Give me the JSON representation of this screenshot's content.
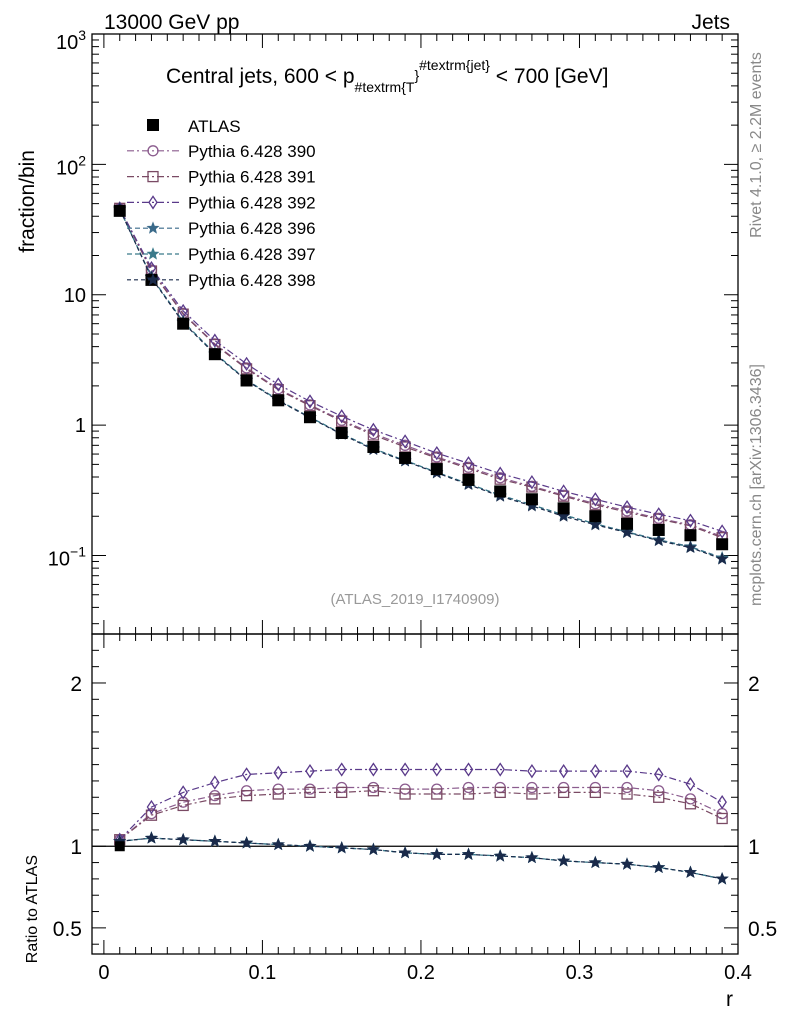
{
  "header": {
    "left": "13000 GeV pp",
    "right": "Jets"
  },
  "side_labels": {
    "rivet": "Rivet 4.1.0, ≥ 2.2M events",
    "mcplots": "mcplots.cern.ch [arXiv:1306.3436]"
  },
  "chart_data": {
    "type": "line",
    "title": "Central jets, 600 < p",
    "title_sub": "#textrm{T",
    "title_brace": "}",
    "title_sup": "#textrm{jet}",
    "title_tail": " < 700 [GeV]",
    "watermark": "(ATLAS_2019_I1740909)",
    "xlabel": "r",
    "ylabel": "fraction/bin",
    "ratio_ylabel": "Ratio to ATLAS",
    "xlim": [
      -0.0075,
      0.4
    ],
    "ylim": [
      0.025,
      1000
    ],
    "ylog": true,
    "ratio_ylim": [
      0.34,
      2.3
    ],
    "x_ticks": [
      "0",
      "0.1",
      "0.2",
      "0.3",
      "0.4"
    ],
    "main_y_ticks": [
      "10",
      "1"
    ],
    "main_y_ticks_exp": [
      {
        "base": "10",
        "exp": "3"
      },
      {
        "base": "10",
        "exp": "2"
      },
      {
        "base": "10",
        "exp": "−1"
      }
    ],
    "ratio_y_ticks": [
      "2",
      "1",
      "0.5"
    ],
    "x": [
      0.01,
      0.03,
      0.05,
      0.07,
      0.09,
      0.11,
      0.13,
      0.15,
      0.17,
      0.19,
      0.21,
      0.23,
      0.25,
      0.27,
      0.29,
      0.31,
      0.33,
      0.35,
      0.37,
      0.39
    ],
    "data": {
      "name": "ATLAS",
      "values": [
        44,
        13,
        6,
        3.5,
        2.2,
        1.55,
        1.15,
        0.87,
        0.68,
        0.56,
        0.46,
        0.38,
        0.31,
        0.27,
        0.23,
        0.2,
        0.175,
        0.157,
        0.143,
        0.122
      ]
    },
    "series": [
      {
        "name": "Pythia 6.428 390",
        "color": "#8b5c8e",
        "marker": "circle",
        "dash": "7,3,2,3",
        "values": [
          46,
          15.5,
          7.2,
          4.2,
          2.75,
          1.9,
          1.43,
          1.09,
          0.86,
          0.7,
          0.57,
          0.475,
          0.395,
          0.34,
          0.29,
          0.25,
          0.22,
          0.193,
          0.172,
          0.14
        ]
      },
      {
        "name": "Pythia 6.428 391",
        "color": "#7a4a64",
        "marker": "square",
        "dash": "7,3,2,3",
        "values": [
          46,
          15.2,
          7.1,
          4.15,
          2.7,
          1.87,
          1.41,
          1.07,
          0.84,
          0.68,
          0.56,
          0.465,
          0.385,
          0.335,
          0.285,
          0.245,
          0.215,
          0.19,
          0.169,
          0.137
        ]
      },
      {
        "name": "Pythia 6.428 392",
        "color": "#5a3a8a",
        "marker": "diamond",
        "dash": "7,3,2,3",
        "values": [
          46,
          16,
          7.5,
          4.45,
          2.95,
          2.05,
          1.52,
          1.17,
          0.92,
          0.75,
          0.61,
          0.51,
          0.425,
          0.365,
          0.31,
          0.27,
          0.235,
          0.207,
          0.185,
          0.153
        ]
      },
      {
        "name": "Pythia 6.428 396",
        "color": "#3a6a8a",
        "marker": "star",
        "dash": "5,3",
        "values": [
          45.5,
          13.7,
          6.2,
          3.55,
          2.22,
          1.56,
          1.15,
          0.86,
          0.66,
          0.535,
          0.435,
          0.355,
          0.29,
          0.245,
          0.205,
          0.175,
          0.152,
          0.132,
          0.117,
          0.096
        ]
      },
      {
        "name": "Pythia 6.428 397",
        "color": "#3a7a8a",
        "marker": "star",
        "dash": "5,3",
        "values": [
          45.5,
          13.6,
          6.2,
          3.55,
          2.22,
          1.55,
          1.15,
          0.86,
          0.66,
          0.535,
          0.435,
          0.355,
          0.29,
          0.245,
          0.205,
          0.175,
          0.151,
          0.131,
          0.116,
          0.095
        ]
      },
      {
        "name": "Pythia 6.428 398",
        "color": "#1a2a4a",
        "marker": "star",
        "dash": "4,3",
        "values": [
          45.5,
          13.5,
          6.1,
          3.5,
          2.2,
          1.54,
          1.14,
          0.85,
          0.65,
          0.53,
          0.43,
          0.35,
          0.285,
          0.24,
          0.2,
          0.172,
          0.15,
          0.13,
          0.115,
          0.094
        ]
      }
    ],
    "ratios": [
      {
        "name": "Pythia 6.428 390",
        "values": [
          1.04,
          1.2,
          1.27,
          1.31,
          1.34,
          1.35,
          1.35,
          1.36,
          1.36,
          1.35,
          1.35,
          1.36,
          1.36,
          1.36,
          1.36,
          1.36,
          1.36,
          1.34,
          1.29,
          1.2
        ]
      },
      {
        "name": "Pythia 6.428 391",
        "values": [
          1.04,
          1.19,
          1.25,
          1.29,
          1.31,
          1.32,
          1.33,
          1.33,
          1.34,
          1.32,
          1.32,
          1.32,
          1.33,
          1.32,
          1.33,
          1.33,
          1.32,
          1.3,
          1.26,
          1.17
        ]
      },
      {
        "name": "Pythia 6.428 392",
        "values": [
          1.04,
          1.24,
          1.33,
          1.39,
          1.44,
          1.45,
          1.46,
          1.47,
          1.47,
          1.47,
          1.47,
          1.47,
          1.47,
          1.46,
          1.46,
          1.46,
          1.46,
          1.44,
          1.38,
          1.27
        ]
      },
      {
        "name": "Pythia 6.428 396",
        "values": [
          1.03,
          1.05,
          1.04,
          1.03,
          1.02,
          1.01,
          1.0,
          0.99,
          0.98,
          0.96,
          0.95,
          0.95,
          0.94,
          0.93,
          0.91,
          0.9,
          0.89,
          0.87,
          0.84,
          0.8
        ]
      },
      {
        "name": "Pythia 6.428 397",
        "values": [
          1.03,
          1.05,
          1.04,
          1.03,
          1.02,
          1.01,
          1.0,
          0.99,
          0.98,
          0.96,
          0.95,
          0.95,
          0.94,
          0.93,
          0.91,
          0.9,
          0.89,
          0.87,
          0.84,
          0.8
        ]
      },
      {
        "name": "Pythia 6.428 398",
        "values": [
          1.03,
          1.05,
          1.04,
          1.03,
          1.02,
          1.01,
          1.0,
          0.99,
          0.98,
          0.96,
          0.95,
          0.95,
          0.94,
          0.93,
          0.91,
          0.9,
          0.89,
          0.87,
          0.84,
          0.8
        ]
      }
    ]
  }
}
